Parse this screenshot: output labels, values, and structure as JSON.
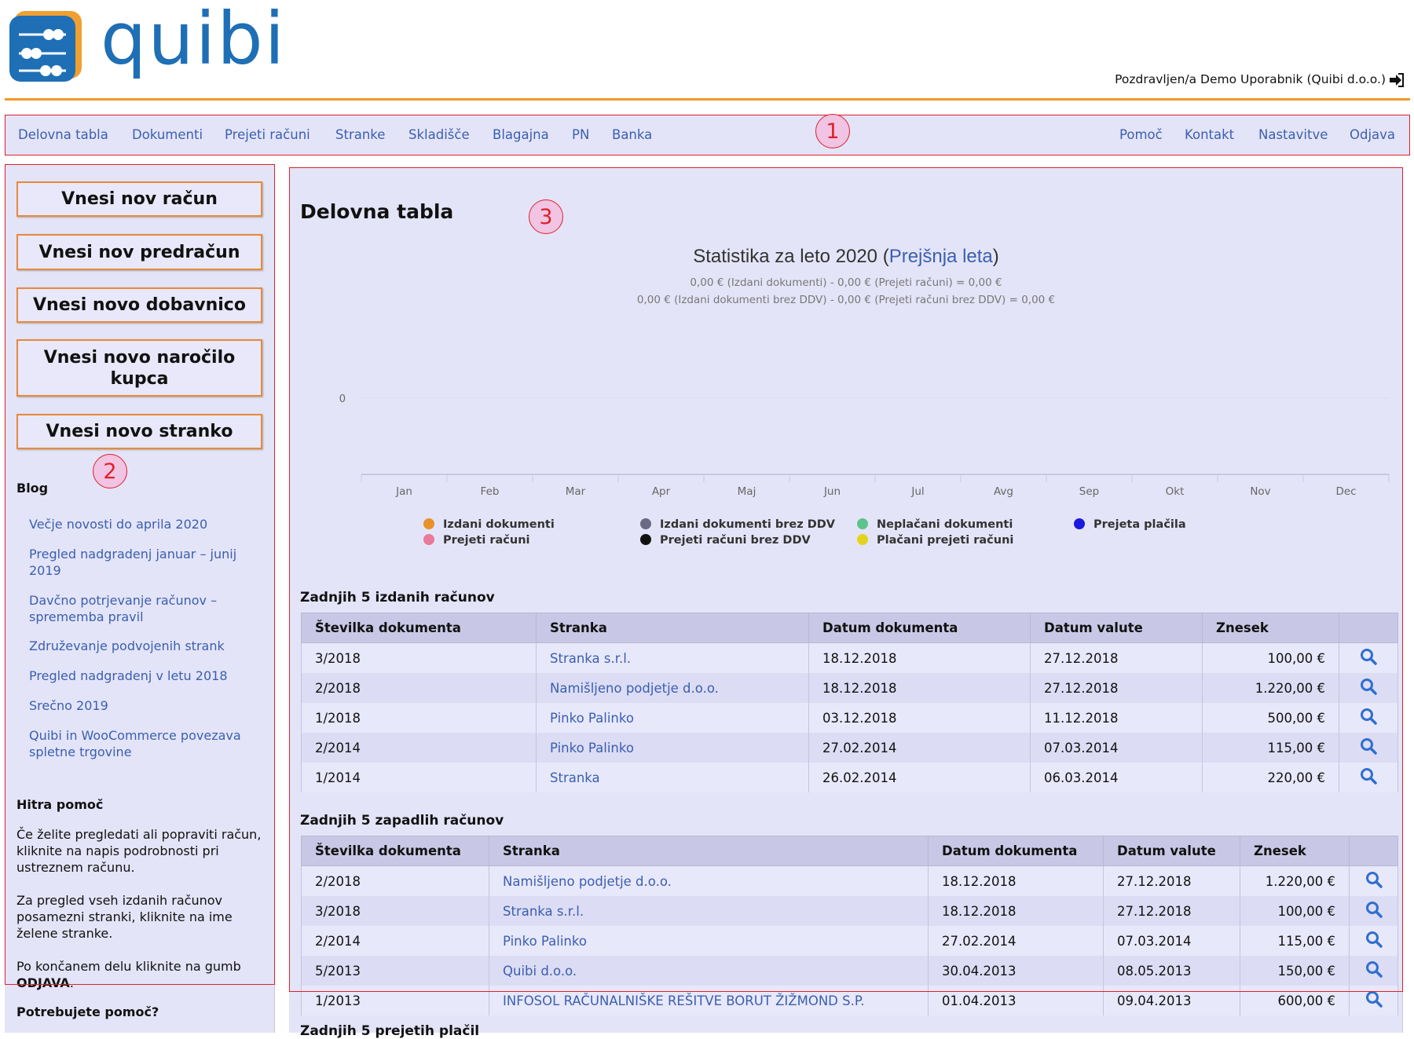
{
  "header": {
    "logo_text": "quibi",
    "greeting": "Pozdravljen/a Demo Uporabnik (Quibi d.o.o.)"
  },
  "nav": {
    "left": [
      "Delovna tabla",
      "Dokumenti",
      "Prejeti računi",
      "Stranke",
      "Skladišče",
      "Blagajna",
      "PN",
      "Banka"
    ],
    "right": [
      "Pomoč",
      "Kontakt",
      "Nastavitve",
      "Odjava"
    ]
  },
  "annotations": [
    "1",
    "2",
    "3"
  ],
  "sidebar": {
    "buttons": [
      "Vnesi nov račun",
      "Vnesi nov predračun",
      "Vnesi novo dobavnico",
      "Vnesi novo naročilo kupca",
      "Vnesi novo stranko"
    ],
    "blog_title": "Blog",
    "blog": [
      "Večje novosti do aprila 2020",
      "Pregled nadgradenj januar – junij 2019",
      "Davčno potrjevanje računov – sprememba pravil",
      "Združevanje podvojenih strank",
      "Pregled nadgradenj v letu 2018",
      "Srečno 2019",
      "Quibi in WooCommerce povezava spletne trgovine"
    ],
    "help_title": "Hitra pomoč",
    "help": [
      [
        "Če želite pregledati ali popraviti račun, kliknite na napis podrobnosti pri ustreznem računu."
      ],
      [
        "Za pregled vseh izdanih računov posamezni stranki, kliknite na ime želene stranke."
      ],
      [
        "Po končanem delu kliknite na gumb ",
        "ODJAVA",
        "."
      ]
    ],
    "need_help": "Potrebujete pomoč?"
  },
  "main": {
    "title": "Delovna tabla",
    "chart": {
      "type": "line",
      "title_parts": [
        "Statistika za leto 2020 (",
        "Prejšnja leta",
        ")"
      ],
      "subtitle": [
        "0,00 € (Izdani dokumenti) - 0,00 € (Prejeti računi) = 0,00 €",
        "0,00 € (Izdani dokumenti brez DDV) - 0,00 € (Prejeti računi brez DDV) = 0,00 €"
      ],
      "categories": [
        "Jan",
        "Feb",
        "Mar",
        "Apr",
        "Maj",
        "Jun",
        "Jul",
        "Avg",
        "Sep",
        "Okt",
        "Nov",
        "Dec"
      ],
      "yticks": [
        0
      ],
      "grid": true,
      "series": [
        {
          "name": "Izdani dokumenti",
          "color": "#e8922a"
        },
        {
          "name": "Prejeti računi",
          "color": "#e87a9a"
        },
        {
          "name": "Izdani dokumenti brez DDV",
          "color": "#6a6a84"
        },
        {
          "name": "Prejeti računi brez DDV",
          "color": "#111111"
        },
        {
          "name": "Neplačani dokumenti",
          "color": "#5bc48a"
        },
        {
          "name": "Plačani prejeti računi",
          "color": "#e2d41e"
        },
        {
          "name": "Prejeta plačila",
          "color": "#1a1adc"
        }
      ]
    },
    "tables": [
      {
        "title": "Zadnjih 5 izdanih računov",
        "columns": [
          "Številka dokumenta",
          "Stranka",
          "Datum dokumenta",
          "Datum valute",
          "Znesek"
        ],
        "rows": [
          [
            "3/2018",
            "Stranka s.r.l.",
            "18.12.2018",
            "27.12.2018",
            "100,00 €"
          ],
          [
            "2/2018",
            "Namišljeno podjetje d.o.o.",
            "18.12.2018",
            "27.12.2018",
            "1.220,00 €"
          ],
          [
            "1/2018",
            "Pinko Palinko",
            "03.12.2018",
            "11.12.2018",
            "500,00 €"
          ],
          [
            "2/2014",
            "Pinko Palinko",
            "27.02.2014",
            "07.03.2014",
            "115,00 €"
          ],
          [
            "1/2014",
            "Stranka",
            "26.02.2014",
            "06.03.2014",
            "220,00 €"
          ]
        ]
      },
      {
        "title": "Zadnjih 5 zapadlih računov",
        "columns": [
          "Številka dokumenta",
          "Stranka",
          "Datum dokumenta",
          "Datum valute",
          "Znesek"
        ],
        "rows": [
          [
            "2/2018",
            "Namišljeno podjetje d.o.o.",
            "18.12.2018",
            "27.12.2018",
            "1.220,00 €"
          ],
          [
            "3/2018",
            "Stranka s.r.l.",
            "18.12.2018",
            "27.12.2018",
            "100,00 €"
          ],
          [
            "2/2014",
            "Pinko Palinko",
            "27.02.2014",
            "07.03.2014",
            "115,00 €"
          ],
          [
            "5/2013",
            "Quibi d.o.o.",
            "30.04.2013",
            "08.05.2013",
            "150,00 €"
          ],
          [
            "1/2013",
            "INFOSOL RAČUNALNIŠKE REŠITVE BORUT ŽIŽMOND S.P.",
            "01.04.2013",
            "09.04.2013",
            "600,00 €"
          ]
        ]
      }
    ],
    "next_title": "Zadnjih 5 prejetih plačil"
  }
}
